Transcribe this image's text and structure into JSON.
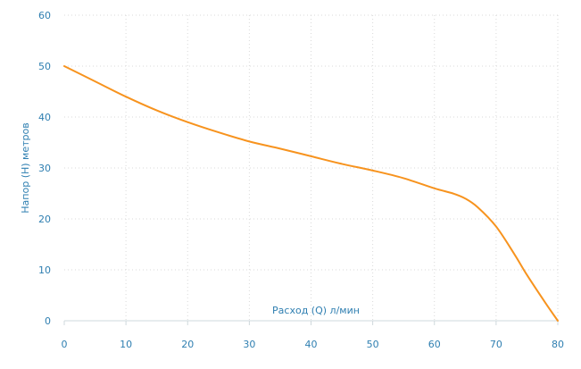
{
  "chart_data": {
    "type": "line",
    "xlabel": "Расход (Q) л/мин",
    "ylabel": "Напор (H) метров",
    "xlim": [
      0,
      80
    ],
    "ylim": [
      0,
      60
    ],
    "x_ticks": [
      "0",
      "10",
      "20",
      "30",
      "40",
      "50",
      "60",
      "70",
      "80"
    ],
    "y_ticks": [
      "0",
      "10",
      "20",
      "30",
      "40",
      "50",
      "60"
    ],
    "grid": true,
    "legend": "none",
    "series": [
      {
        "color": "#f7931e",
        "x": [
          0,
          5,
          10,
          15,
          20,
          25,
          30,
          35,
          40,
          45,
          50,
          55,
          60,
          63,
          65,
          67,
          70,
          73,
          75,
          78,
          80
        ],
        "y": [
          50,
          47,
          44,
          41.3,
          39,
          37,
          35.2,
          33.8,
          32.3,
          30.8,
          29.5,
          28,
          26,
          25,
          24,
          22.3,
          18.5,
          13,
          9,
          3.5,
          0
        ]
      }
    ]
  },
  "colors": {
    "axis_text": "#2f7fb1",
    "grid": "#d9d9d9",
    "series": "#f7931e"
  }
}
